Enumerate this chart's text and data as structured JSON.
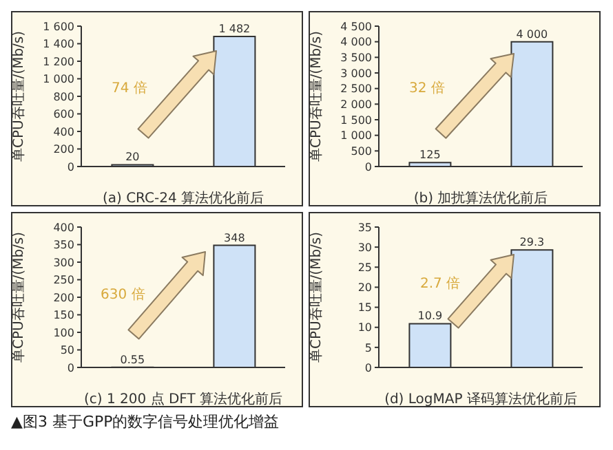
{
  "chart_data": [
    {
      "type": "bar",
      "xlabel": "(a) CRC-24 算法优化前后",
      "ylabel": "单CPU吞吐量/(Mb/s)",
      "categories": [
        null,
        null
      ],
      "values": [
        20,
        1482
      ],
      "colors": [
        "#cfe2f7",
        "#cfe2f7"
      ],
      "value_labels": [
        "20",
        "1 482"
      ],
      "ylim": [
        0,
        1600
      ],
      "yticks": [
        0,
        200,
        400,
        600,
        800,
        {
          "value": 1000,
          "label": "1 000"
        },
        {
          "value": 1200,
          "label": "1 200"
        },
        {
          "value": 1400,
          "label": "1 400"
        },
        {
          "value": 1600,
          "label": "1 600"
        }
      ],
      "annotations": [
        "74 倍"
      ],
      "grid": false,
      "legend": false
    },
    {
      "type": "bar",
      "xlabel": "(b) 加扰算法优化前后",
      "ylabel": "单CPU吞吐量/(Mb/s)",
      "categories": [
        null,
        null
      ],
      "values": [
        125,
        4000
      ],
      "colors": [
        "#cfe2f7",
        "#cfe2f7"
      ],
      "value_labels": [
        "125",
        "4 000"
      ],
      "ylim": [
        0,
        4500
      ],
      "yticks": [
        0,
        500,
        {
          "value": 1000,
          "label": "1 000"
        },
        {
          "value": 1500,
          "label": "1 500"
        },
        {
          "value": 2000,
          "label": "2 000"
        },
        {
          "value": 2500,
          "label": "2 500"
        },
        {
          "value": 3000,
          "label": "3 000"
        },
        {
          "value": 3500,
          "label": "3 500"
        },
        {
          "value": 4000,
          "label": "4 000"
        },
        {
          "value": 4500,
          "label": "4 500"
        }
      ],
      "annotations": [
        "32 倍"
      ],
      "grid": false,
      "legend": false
    },
    {
      "type": "bar",
      "xlabel": "(c) 1 200 点 DFT 算法优化前后",
      "ylabel": "单CPU吞吐量/(Mb/s)",
      "categories": [
        null,
        null
      ],
      "values": [
        0.55,
        348
      ],
      "colors": [
        "#cfe2f7",
        "#cfe2f7"
      ],
      "value_labels": [
        "0.55",
        "348"
      ],
      "ylim": [
        0,
        400
      ],
      "yticks": [
        0,
        50,
        100,
        150,
        200,
        250,
        300,
        350,
        400
      ],
      "annotations": [
        "630 倍",
        "▲图3 基于GPP的数字信号处理优化增益"
      ],
      "grid": false,
      "legend": false
    },
    {
      "type": "bar",
      "xlabel": "(d) LogMAP 译码算法优化前后",
      "ylabel": "单CPU吞吐量/(Mb/s)",
      "categories": [
        null,
        null
      ],
      "values": [
        10.9,
        29.3
      ],
      "colors": [
        "#cfe2f7",
        "#cfe2f7"
      ],
      "value_labels": [
        "10.9",
        "29.3"
      ],
      "ylim": [
        0,
        35
      ],
      "yticks": [
        0,
        5,
        10,
        15,
        20,
        25,
        30,
        35
      ],
      "annotations": [
        "2.7 倍"
      ],
      "grid": false,
      "legend": false
    }
  ]
}
